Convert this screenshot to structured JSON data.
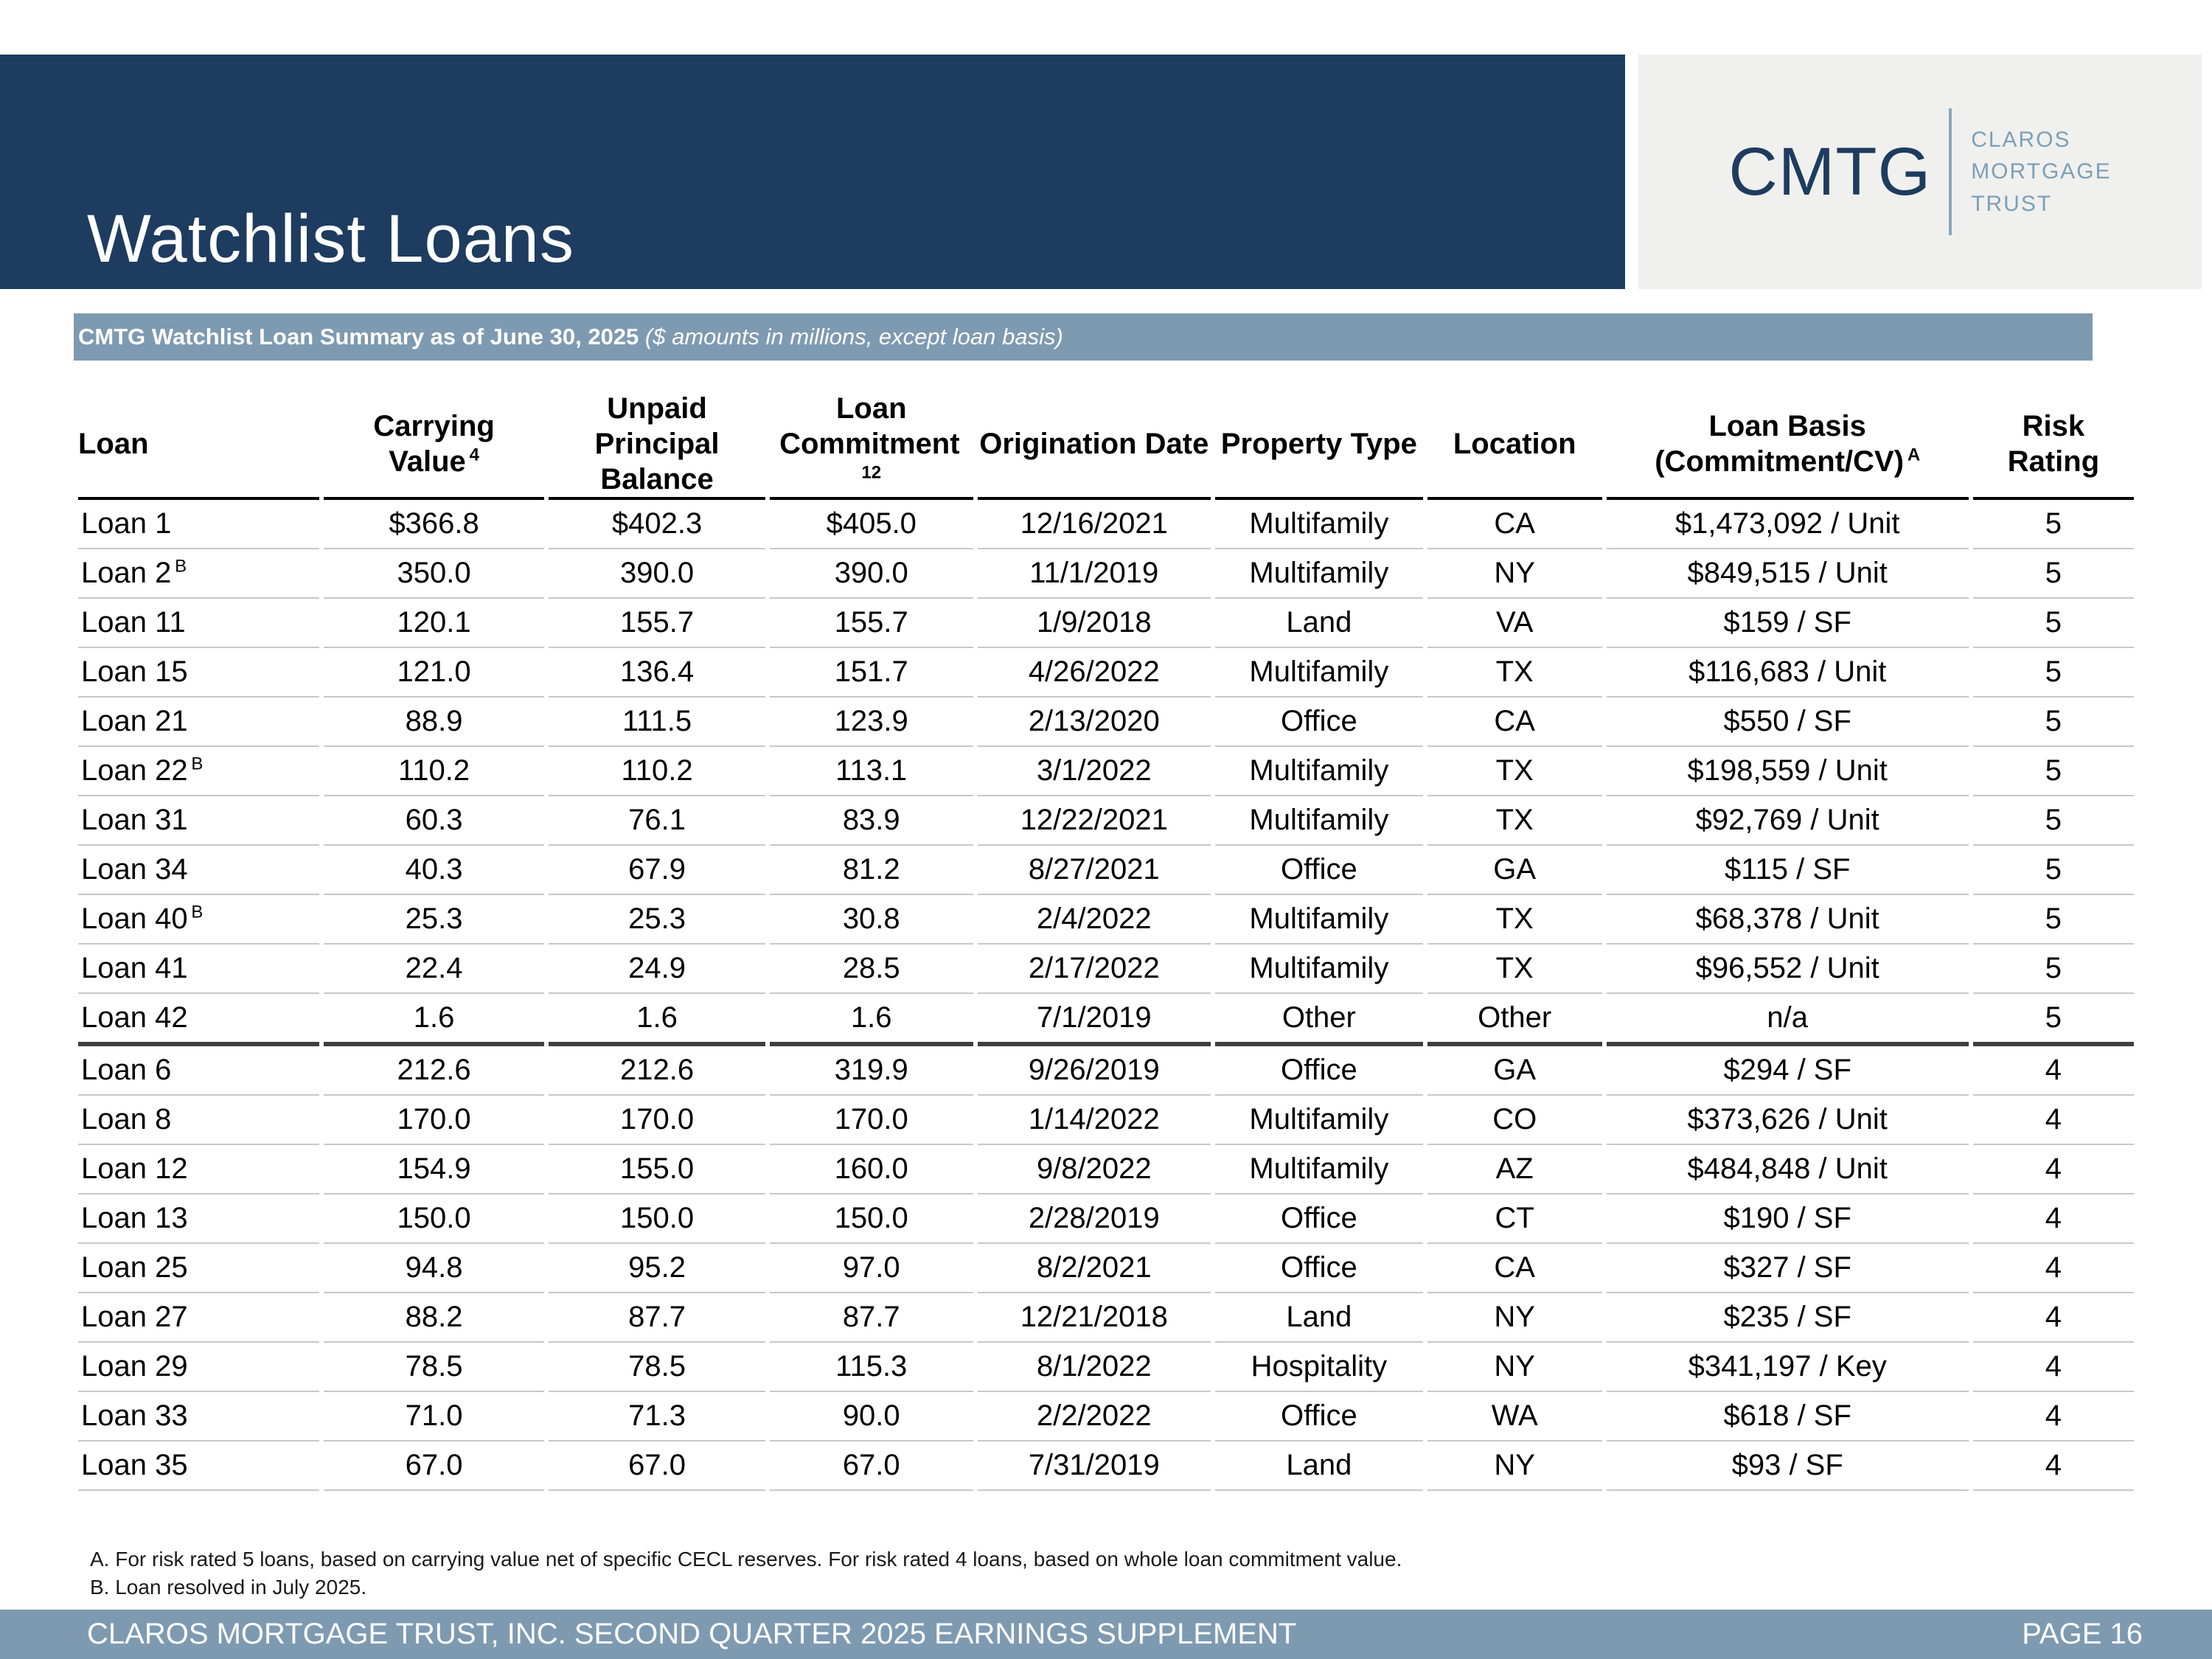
{
  "colors": {
    "navy": "#1d3c5f",
    "slate": "#7e9ab1",
    "logo_bg": "#f0f0ee",
    "logo_text": "#7c9fb8"
  },
  "page": {
    "title": "Watchlist Loans",
    "logo": {
      "abbr": "CMTG",
      "name_lines": [
        "CLAROS",
        "MORTGAGE",
        "TRUST"
      ]
    },
    "table_title_bold": "CMTG Watchlist Loan Summary as of June 30, 2025",
    "table_title_italic": "($ amounts in millions, except loan basis)",
    "footnotes": [
      "A. For risk rated 5 loans, based on carrying value net of specific CECL reserves. For risk rated 4 loans, based on whole loan commitment value.",
      "B. Loan resolved in July 2025."
    ],
    "footer": {
      "left": "CLAROS MORTGAGE TRUST, INC. SECOND QUARTER 2025 EARNINGS SUPPLEMENT",
      "right": "PAGE 16"
    }
  },
  "table": {
    "columns": [
      {
        "id": "loan",
        "lines": [
          "Loan"
        ],
        "sup": "",
        "align": "left",
        "width_pct": 11.93
      },
      {
        "id": "carrying-value",
        "lines": [
          "Carrying",
          "Value"
        ],
        "sup": "4",
        "align": "center",
        "width_pct": 10.93
      },
      {
        "id": "unpaid-principal-balance",
        "lines": [
          "Unpaid Principal",
          "Balance"
        ],
        "sup": "",
        "align": "center",
        "width_pct": 10.71
      },
      {
        "id": "loan-commitment",
        "lines": [
          "Loan",
          "Commitment"
        ],
        "sup": "12",
        "align": "center",
        "width_pct": 10.07
      },
      {
        "id": "origination-date",
        "lines": [
          "Origination Date"
        ],
        "sup": "",
        "align": "center",
        "width_pct": 11.54
      },
      {
        "id": "property-type",
        "lines": [
          "Property Type"
        ],
        "sup": "",
        "align": "center",
        "width_pct": 10.29
      },
      {
        "id": "location",
        "lines": [
          "Location"
        ],
        "sup": "",
        "align": "center",
        "width_pct": 8.64
      },
      {
        "id": "loan-basis",
        "lines": [
          "Loan Basis",
          "(Commitment/CV)"
        ],
        "sup": "A",
        "align": "center",
        "width_pct": 17.93
      },
      {
        "id": "risk-rating",
        "lines": [
          "Risk Rating"
        ],
        "sup": "",
        "align": "center",
        "width_pct": 7.96
      }
    ],
    "rows": [
      {
        "loan": "Loan 1",
        "sup": "",
        "cells": [
          "$366.8",
          "$402.3",
          "$405.0",
          "12/16/2021",
          "Multifamily",
          "CA",
          "$1,473,092 / Unit",
          "5"
        ],
        "section_end": false
      },
      {
        "loan": "Loan 2",
        "sup": "B",
        "cells": [
          "350.0",
          "390.0",
          "390.0",
          "11/1/2019",
          "Multifamily",
          "NY",
          "$849,515 / Unit",
          "5"
        ],
        "section_end": false
      },
      {
        "loan": "Loan 11",
        "sup": "",
        "cells": [
          "120.1",
          "155.7",
          "155.7",
          "1/9/2018",
          "Land",
          "VA",
          "$159 / SF",
          "5"
        ],
        "section_end": false
      },
      {
        "loan": "Loan 15",
        "sup": "",
        "cells": [
          "121.0",
          "136.4",
          "151.7",
          "4/26/2022",
          "Multifamily",
          "TX",
          "$116,683 / Unit",
          "5"
        ],
        "section_end": false
      },
      {
        "loan": "Loan 21",
        "sup": "",
        "cells": [
          "88.9",
          "111.5",
          "123.9",
          "2/13/2020",
          "Office",
          "CA",
          "$550 / SF",
          "5"
        ],
        "section_end": false
      },
      {
        "loan": "Loan 22",
        "sup": "B",
        "cells": [
          "110.2",
          "110.2",
          "113.1",
          "3/1/2022",
          "Multifamily",
          "TX",
          "$198,559 / Unit",
          "5"
        ],
        "section_end": false
      },
      {
        "loan": "Loan 31",
        "sup": "",
        "cells": [
          "60.3",
          "76.1",
          "83.9",
          "12/22/2021",
          "Multifamily",
          "TX",
          "$92,769 / Unit",
          "5"
        ],
        "section_end": false
      },
      {
        "loan": "Loan 34",
        "sup": "",
        "cells": [
          "40.3",
          "67.9",
          "81.2",
          "8/27/2021",
          "Office",
          "GA",
          "$115 / SF",
          "5"
        ],
        "section_end": false
      },
      {
        "loan": "Loan 40",
        "sup": "B",
        "cells": [
          "25.3",
          "25.3",
          "30.8",
          "2/4/2022",
          "Multifamily",
          "TX",
          "$68,378 / Unit",
          "5"
        ],
        "section_end": false
      },
      {
        "loan": "Loan 41",
        "sup": "",
        "cells": [
          "22.4",
          "24.9",
          "28.5",
          "2/17/2022",
          "Multifamily",
          "TX",
          "$96,552 / Unit",
          "5"
        ],
        "section_end": false
      },
      {
        "loan": "Loan 42",
        "sup": "",
        "cells": [
          "1.6",
          "1.6",
          "1.6",
          "7/1/2019",
          "Other",
          "Other",
          "n/a",
          "5"
        ],
        "section_end": true
      },
      {
        "loan": "Loan 6",
        "sup": "",
        "cells": [
          "212.6",
          "212.6",
          "319.9",
          "9/26/2019",
          "Office",
          "GA",
          "$294 / SF",
          "4"
        ],
        "section_end": false
      },
      {
        "loan": "Loan 8",
        "sup": "",
        "cells": [
          "170.0",
          "170.0",
          "170.0",
          "1/14/2022",
          "Multifamily",
          "CO",
          "$373,626 / Unit",
          "4"
        ],
        "section_end": false
      },
      {
        "loan": "Loan 12",
        "sup": "",
        "cells": [
          "154.9",
          "155.0",
          "160.0",
          "9/8/2022",
          "Multifamily",
          "AZ",
          "$484,848 / Unit",
          "4"
        ],
        "section_end": false
      },
      {
        "loan": "Loan 13",
        "sup": "",
        "cells": [
          "150.0",
          "150.0",
          "150.0",
          "2/28/2019",
          "Office",
          "CT",
          "$190 / SF",
          "4"
        ],
        "section_end": false
      },
      {
        "loan": "Loan 25",
        "sup": "",
        "cells": [
          "94.8",
          "95.2",
          "97.0",
          "8/2/2021",
          "Office",
          "CA",
          "$327 / SF",
          "4"
        ],
        "section_end": false
      },
      {
        "loan": "Loan 27",
        "sup": "",
        "cells": [
          "88.2",
          "87.7",
          "87.7",
          "12/21/2018",
          "Land",
          "NY",
          "$235 / SF",
          "4"
        ],
        "section_end": false
      },
      {
        "loan": "Loan 29",
        "sup": "",
        "cells": [
          "78.5",
          "78.5",
          "115.3",
          "8/1/2022",
          "Hospitality",
          "NY",
          "$341,197 / Key",
          "4"
        ],
        "section_end": false
      },
      {
        "loan": "Loan 33",
        "sup": "",
        "cells": [
          "71.0",
          "71.3",
          "90.0",
          "2/2/2022",
          "Office",
          "WA",
          "$618 / SF",
          "4"
        ],
        "section_end": false
      },
      {
        "loan": "Loan 35",
        "sup": "",
        "cells": [
          "67.0",
          "67.0",
          "67.0",
          "7/31/2019",
          "Land",
          "NY",
          "$93 / SF",
          "4"
        ],
        "section_end": false
      }
    ]
  }
}
